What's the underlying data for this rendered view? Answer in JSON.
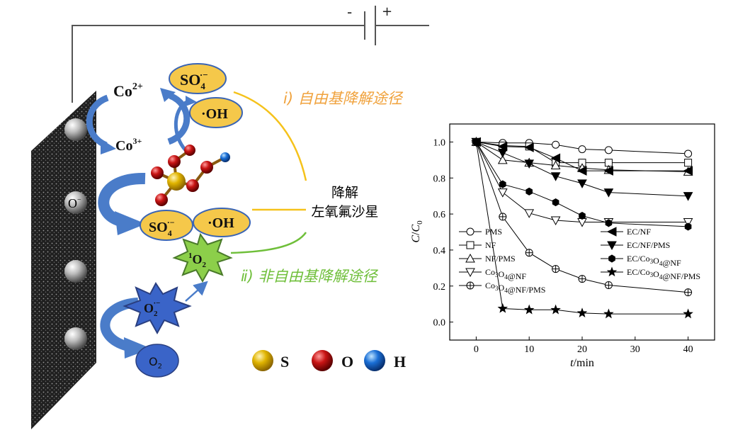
{
  "battery": {
    "minus": "-",
    "plus": "+"
  },
  "species": {
    "co2": "Co",
    "co2_sup": "2+",
    "co3": "Co",
    "co3_sup": "3+",
    "so4_top": "SO",
    "so4_top_sub": "4",
    "so4_top_sup": "·−",
    "oh_top": "·OH",
    "o_minus": "O",
    "o_minus_sup": "−",
    "so4_mid": "SO",
    "so4_mid_sub": "4",
    "so4_mid_sup": "·−",
    "oh_mid": "·OH",
    "singlet_sup": "1",
    "singlet": "O",
    "singlet_sub": "2",
    "superoxide": "O",
    "superoxide_sub": "2",
    "superoxide_sup": "·−",
    "o2": "O",
    "o2_sub": "2"
  },
  "pathways": {
    "radical": "ⅰ) 自由基降解途径",
    "nonradical": "ⅱ) 非自由基降解途径"
  },
  "target": {
    "line1": "降解",
    "line2": "左氧氟沙星"
  },
  "atom_legend": [
    {
      "symbol": "S",
      "color": "#e0b400"
    },
    {
      "symbol": "O",
      "color": "#c81414"
    },
    {
      "symbol": "H",
      "color": "#1a6fd6"
    }
  ],
  "colors": {
    "radical_path": "#f0a23c",
    "radical_line": "#f5c21b",
    "nonradical_path": "#6fbf3a",
    "ellipse_fill": "#f5c84a",
    "ellipse_stroke": "#3a64b4",
    "arrow_blue": "#4a7cc9"
  },
  "chart_data": {
    "type": "line",
    "xlabel": "t/min",
    "ylabel": "C/C0",
    "xlim": [
      -5,
      45
    ],
    "ylim": [
      -0.1,
      1.1
    ],
    "xticks": [
      0,
      10,
      20,
      30,
      40
    ],
    "yticks": [
      "0.0",
      "0.2",
      "0.4",
      "0.6",
      "0.8",
      "1.0"
    ],
    "x": [
      0,
      5,
      10,
      15,
      20,
      25,
      40
    ],
    "legend_left": [
      "PMS",
      "NF",
      "NF/PMS",
      "Co3O4@NF",
      "Co3O4@NF/PMS"
    ],
    "legend_right": [
      "EC/NF",
      "EC/NF/PMS",
      "EC/Co3O4@NF",
      "EC/Co3O4@NF/PMS"
    ],
    "series": [
      {
        "name": "PMS",
        "marker": "circle-open",
        "values": [
          1.0,
          0.995,
          0.995,
          0.985,
          0.96,
          0.955,
          0.935
        ]
      },
      {
        "name": "NF",
        "marker": "square-open",
        "values": [
          1.0,
          0.98,
          0.975,
          0.885,
          0.885,
          0.885,
          0.885
        ]
      },
      {
        "name": "NF/PMS",
        "marker": "triangle-up-open",
        "values": [
          1.0,
          0.9,
          0.885,
          0.87,
          0.855,
          0.845,
          0.835
        ]
      },
      {
        "name": "Co3O4@NF",
        "marker": "triangle-down-open",
        "values": [
          1.0,
          0.72,
          0.605,
          0.565,
          0.555,
          0.555,
          0.555
        ]
      },
      {
        "name": "Co3O4@NF/PMS",
        "marker": "circle-cross",
        "values": [
          1.0,
          0.585,
          0.385,
          0.295,
          0.24,
          0.205,
          0.165
        ]
      },
      {
        "name": "EC/NF",
        "marker": "triangle-left-filled",
        "values": [
          1.0,
          0.975,
          0.97,
          0.91,
          0.84,
          0.84,
          0.84
        ]
      },
      {
        "name": "EC/NF/PMS",
        "marker": "triangle-down-filled",
        "values": [
          1.0,
          0.94,
          0.88,
          0.81,
          0.77,
          0.72,
          0.7
        ]
      },
      {
        "name": "EC/Co3O4@NF",
        "marker": "hexagon-filled",
        "values": [
          1.0,
          0.765,
          0.725,
          0.665,
          0.59,
          0.55,
          0.53
        ]
      },
      {
        "name": "EC/Co3O4@NF/PMS",
        "marker": "star-filled",
        "values": [
          1.0,
          0.075,
          0.068,
          0.068,
          0.05,
          0.045,
          0.045
        ]
      }
    ]
  }
}
